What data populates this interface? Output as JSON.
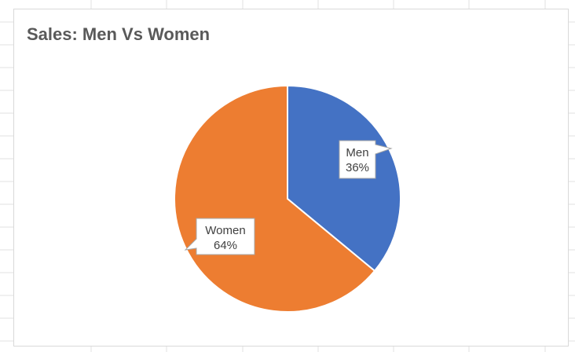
{
  "colors": {
    "men": "#4472c4",
    "women": "#ed7d31",
    "title": "#595959",
    "gridline": "#e1e1e1",
    "chart_border": "#d9d9d9",
    "callout_border": "#a6a6a6"
  },
  "chart_data": {
    "type": "pie",
    "title": "Sales: Men Vs Women",
    "categories": [
      "Men",
      "Women"
    ],
    "values": [
      36,
      64
    ],
    "value_labels": [
      "36%",
      "64%"
    ],
    "start_angle_deg": 0,
    "direction": "clockwise",
    "legend": "none",
    "data_label_style": "callout"
  }
}
